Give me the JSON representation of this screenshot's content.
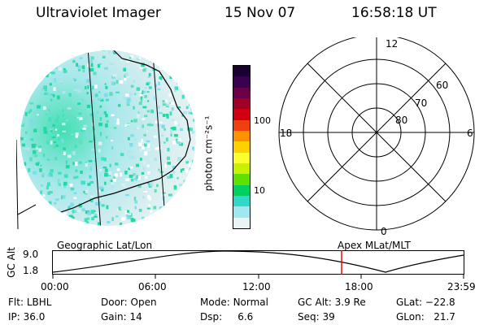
{
  "header": {
    "instrument": "Ultraviolet Imager",
    "date": "15 Nov 07",
    "time": "16:58:18 UT"
  },
  "colorbar": {
    "unit_label": "photon cm⁻²s⁻¹",
    "ticks": [
      "100",
      "10"
    ],
    "colors": [
      "#1a0030",
      "#3a0050",
      "#6a0048",
      "#a00028",
      "#d00010",
      "#f04010",
      "#ff9000",
      "#ffd000",
      "#ffff30",
      "#c8f000",
      "#60e000",
      "#00d060",
      "#30d8c8",
      "#a0e8f0",
      "#e8f4f6"
    ]
  },
  "polar_plot": {
    "mlt_labels": {
      "top": "12",
      "left": "18",
      "right": "6",
      "bottom": "0"
    },
    "lat_labels": [
      "60",
      "70",
      "80"
    ]
  },
  "orbit_plot": {
    "left_label": "Geographic Lat/Lon",
    "right_label": "Apex MLat/MLT",
    "y_axis_label": "GC Alt",
    "y_ticks": [
      "9.0",
      "1.8"
    ],
    "x_ticks": [
      "00:00",
      "06:00",
      "12:00",
      "18:00",
      "23:59"
    ],
    "current_time_marker": "16:58",
    "marker_color": "#e00000"
  },
  "status": {
    "flt_label": "Flt:",
    "flt_value": "LBHL",
    "ip_label": "IP:",
    "ip_value": "36.0",
    "door_label": "Door:",
    "door_value": "Open",
    "gain_label": "Gain:",
    "gain_value": "14",
    "mode_label": "Mode:",
    "mode_value": "Normal",
    "dsp_label": "Dsp:",
    "dsp_value": "6.6",
    "gcalt_label": "GC Alt:",
    "gcalt_value": "3.9 Re",
    "seq_label": "Seq:",
    "seq_value": "39",
    "glat_label": "GLat:",
    "glat_value": "−22.8",
    "glon_label": "GLon:",
    "glon_value": "21.7"
  }
}
